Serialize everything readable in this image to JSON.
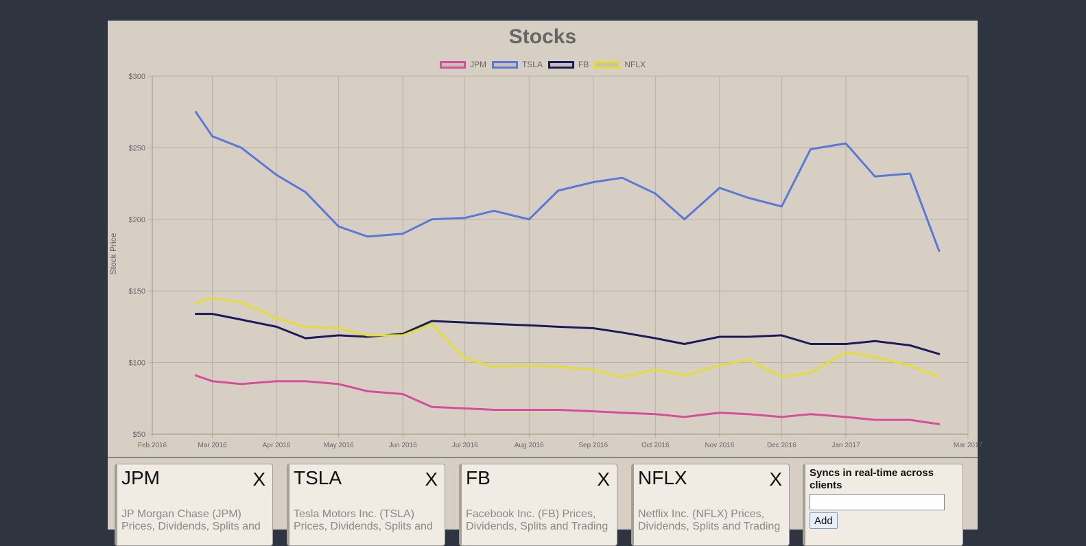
{
  "add_panel": {
    "heading": "Syncs in real-time across clients",
    "input_value": "",
    "button_label": "Add"
  },
  "cards": [
    {
      "symbol": "JPM",
      "close_label": "X",
      "description": "JP Morgan Chase (JPM) Prices, Dividends, Splits and"
    },
    {
      "symbol": "TSLA",
      "close_label": "X",
      "description": "Tesla Motors Inc. (TSLA) Prices, Dividends, Splits and"
    },
    {
      "symbol": "FB",
      "close_label": "X",
      "description": "Facebook Inc. (FB) Prices, Dividends, Splits and Trading"
    },
    {
      "symbol": "NFLX",
      "close_label": "X",
      "description": "Netflix Inc. (NFLX) Prices, Dividends, Splits and Trading"
    }
  ],
  "colors": {
    "background": "#2e3440",
    "panel": "#d8cfc4",
    "card": "#f0ece3"
  },
  "chart_data": {
    "type": "line",
    "title": "Stocks",
    "xlabel": "",
    "ylabel": "Stock Price",
    "ylim": [
      50,
      300
    ],
    "yticks": [
      50,
      100,
      150,
      200,
      250,
      300
    ],
    "ytick_labels": [
      "$50",
      "$100",
      "$150",
      "$200",
      "$250",
      "$300"
    ],
    "xlim": [
      "2016-02-01",
      "2017-03-01"
    ],
    "xticks": [
      "2016-02-01",
      "2016-03-01",
      "2016-04-01",
      "2016-05-01",
      "2016-06-01",
      "2016-07-01",
      "2016-08-01",
      "2016-09-01",
      "2016-10-01",
      "2016-11-01",
      "2016-12-01",
      "2017-01-01",
      "2017-03-01"
    ],
    "xtick_labels": [
      "Feb 2016",
      "Mar 2016",
      "Apr 2016",
      "May 2016",
      "Jun 2016",
      "Jul 2016",
      "Aug 2016",
      "Sep 2016",
      "Oct 2016",
      "Nov 2016",
      "Dec 2016",
      "Jan 2017",
      "Mar 2017"
    ],
    "grid": true,
    "legend_position": "top-center",
    "x": [
      "2016-02-22",
      "2016-03-01",
      "2016-03-15",
      "2016-04-01",
      "2016-04-15",
      "2016-05-01",
      "2016-05-15",
      "2016-06-01",
      "2016-06-15",
      "2016-07-01",
      "2016-07-15",
      "2016-08-01",
      "2016-08-15",
      "2016-09-01",
      "2016-09-15",
      "2016-10-01",
      "2016-10-15",
      "2016-11-01",
      "2016-11-15",
      "2016-12-01",
      "2016-12-15",
      "2017-01-01",
      "2017-01-15",
      "2017-02-01",
      "2017-02-15"
    ],
    "series": [
      {
        "name": "JPM",
        "color": "#d44f9a",
        "values": [
          91,
          87,
          85,
          87,
          87,
          85,
          80,
          78,
          69,
          68,
          67,
          67,
          67,
          66,
          65,
          64,
          62,
          65,
          64,
          62,
          64,
          62,
          60,
          60,
          57
        ]
      },
      {
        "name": "TSLA",
        "color": "#5a78d6",
        "values": [
          275,
          258,
          250,
          231,
          219,
          195,
          188,
          190,
          200,
          201,
          206,
          200,
          220,
          226,
          229,
          218,
          200,
          222,
          215,
          209,
          249,
          253,
          230,
          232,
          178
        ]
      },
      {
        "name": "FB",
        "color": "#1b1b5a",
        "values": [
          134,
          134,
          130,
          125,
          117,
          119,
          118,
          120,
          129,
          128,
          127,
          126,
          125,
          124,
          121,
          117,
          113,
          118,
          118,
          119,
          113,
          113,
          115,
          112,
          106
        ]
      },
      {
        "name": "NFLX",
        "color": "#e3dd35",
        "values": [
          142,
          145,
          142,
          131,
          125,
          124,
          119,
          119,
          127,
          103,
          97,
          98,
          97,
          95,
          90,
          95,
          91,
          98,
          102,
          90,
          93,
          107,
          104,
          98,
          90
        ]
      }
    ]
  }
}
